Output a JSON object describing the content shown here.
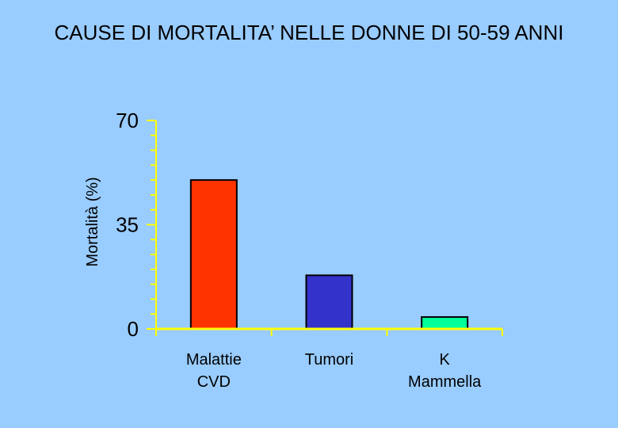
{
  "chart_data": {
    "type": "bar",
    "title": "CAUSE DI MORTALITA’ NELLE DONNE DI 50-59 ANNI",
    "ylabel": "Mortalità (%)",
    "xlabel": "",
    "ylim": [
      0,
      70
    ],
    "yticks": [
      "0",
      "35",
      "70"
    ],
    "categories": [
      [
        "Malattie",
        "CVD"
      ],
      [
        "Tumori"
      ],
      [
        "K",
        "Mammella"
      ]
    ],
    "values": [
      50,
      18,
      4
    ],
    "colors": [
      "#ff3300",
      "#3333cc",
      "#00ff99"
    ],
    "axis_color": "#ffff00",
    "grid": false,
    "legend": "none"
  }
}
